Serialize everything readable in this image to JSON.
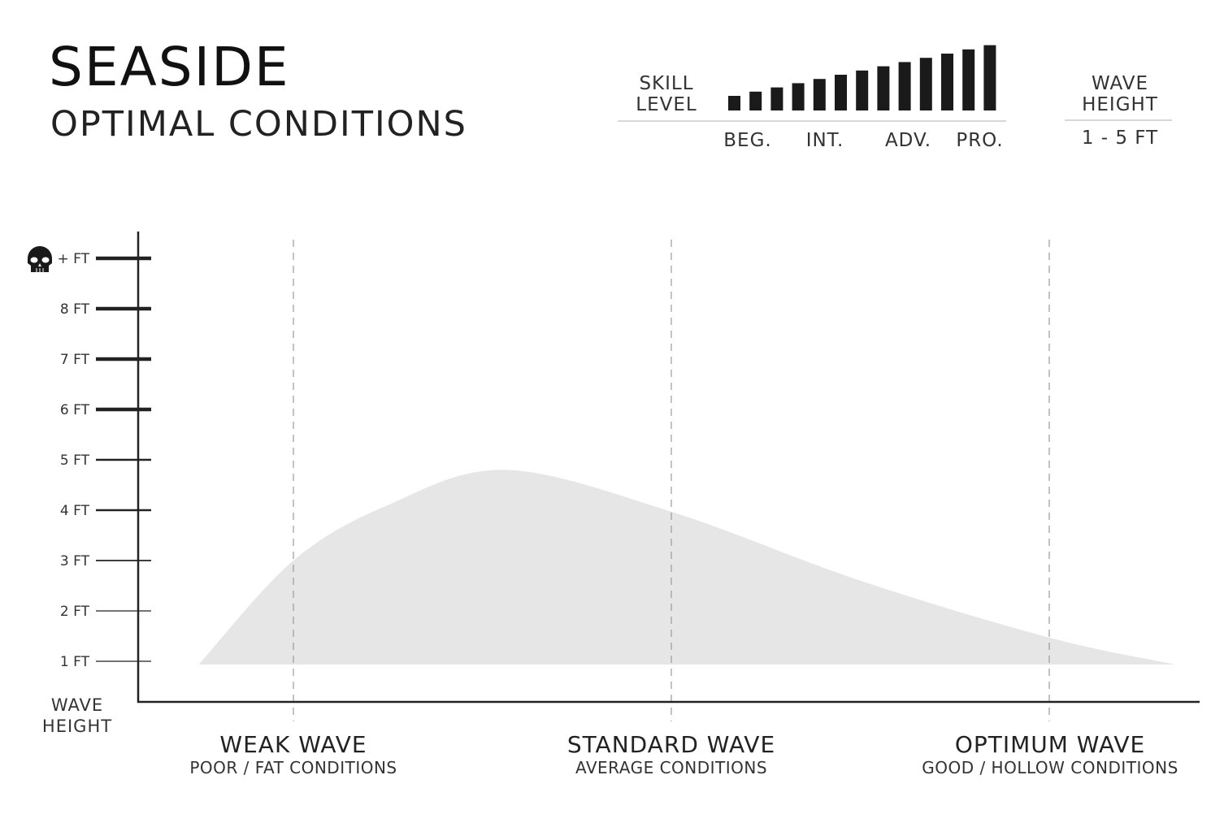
{
  "header": {
    "title": "SEASIDE",
    "subtitle": "OPTIMAL CONDITIONS"
  },
  "skill_level": {
    "label_line1": "SKILL",
    "label_line2": "LEVEL",
    "bars": [
      1,
      2,
      3,
      4,
      5,
      6,
      7,
      8,
      9,
      10,
      11,
      12,
      13
    ],
    "tick_labels": [
      "BEG.",
      "INT.",
      "ADV.",
      "PRO."
    ]
  },
  "wave_height_box": {
    "label_line1": "WAVE",
    "label_line2": "HEIGHT",
    "value": "1 - 5 FT"
  },
  "chart_data": {
    "type": "area",
    "ylabel_line1": "WAVE",
    "ylabel_line2": "HEIGHT",
    "y_ticks": [
      {
        "value": 1,
        "label": "1 FT"
      },
      {
        "value": 2,
        "label": "2 FT"
      },
      {
        "value": 3,
        "label": "3 FT"
      },
      {
        "value": 4,
        "label": "4 FT"
      },
      {
        "value": 5,
        "label": "5 FT"
      },
      {
        "value": 6,
        "label": "6 FT"
      },
      {
        "value": 7,
        "label": "7 FT"
      },
      {
        "value": 8,
        "label": "8 FT"
      },
      {
        "value": 9,
        "label": "+ FT",
        "icon": "skull-icon"
      }
    ],
    "categories": [
      {
        "x": 1,
        "label": "WEAK WAVE",
        "sublabel": "POOR / FAT CONDITIONS"
      },
      {
        "x": 2,
        "label": "STANDARD WAVE",
        "sublabel": "AVERAGE CONDITIONS"
      },
      {
        "x": 3,
        "label": "OPTIMUM WAVE",
        "sublabel": "GOOD / HOLLOW CONDITIONS"
      }
    ],
    "series": [
      {
        "x": [
          0.75,
          1.0,
          1.25,
          1.56,
          2.0,
          2.5,
          3.0,
          3.33
        ],
        "y": [
          0.94,
          3.0,
          4.1,
          4.8,
          3.97,
          2.6,
          1.47,
          0.94
        ]
      }
    ],
    "fill_color": "#e6e6e6",
    "grid": "dashed vertical at categories"
  }
}
